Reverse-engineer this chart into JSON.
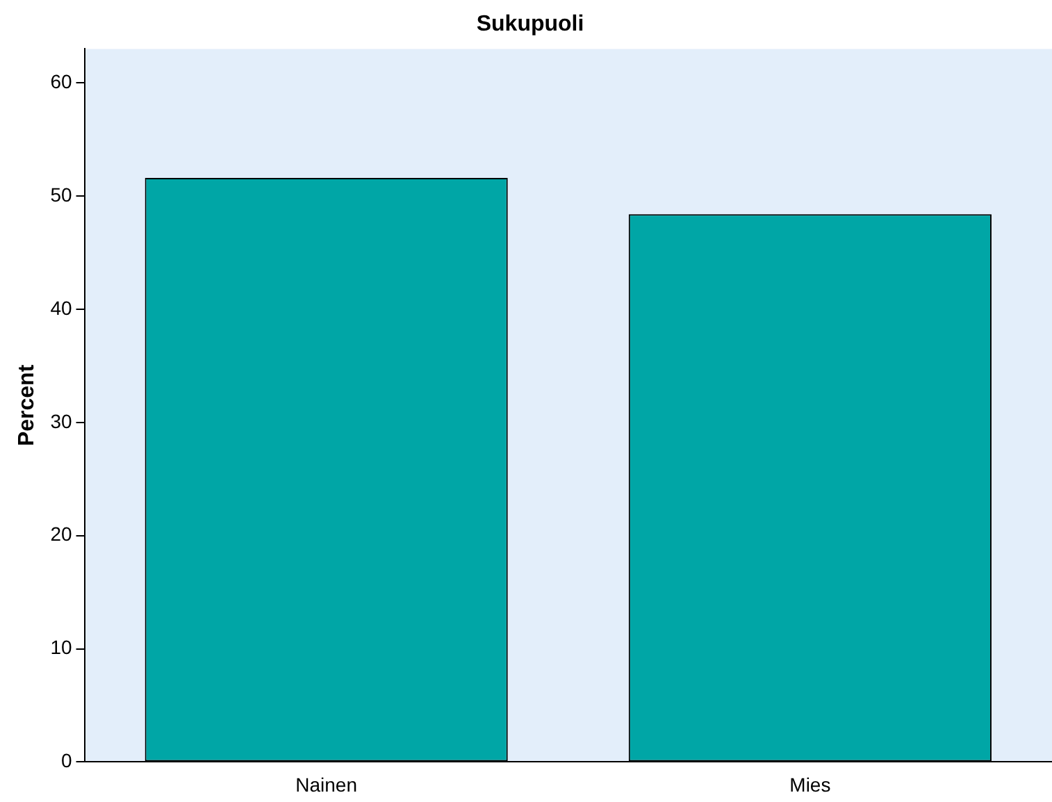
{
  "chart_data": {
    "type": "bar",
    "title": "Sukupuoli",
    "ylabel": "Percent",
    "categories": [
      "Nainen",
      "Mies"
    ],
    "values": [
      51.6,
      48.4
    ],
    "color": "#00a6a6",
    "ylim": [
      0,
      63
    ],
    "yticks": [
      0,
      10,
      20,
      30,
      40,
      50,
      60
    ],
    "grid": false
  }
}
